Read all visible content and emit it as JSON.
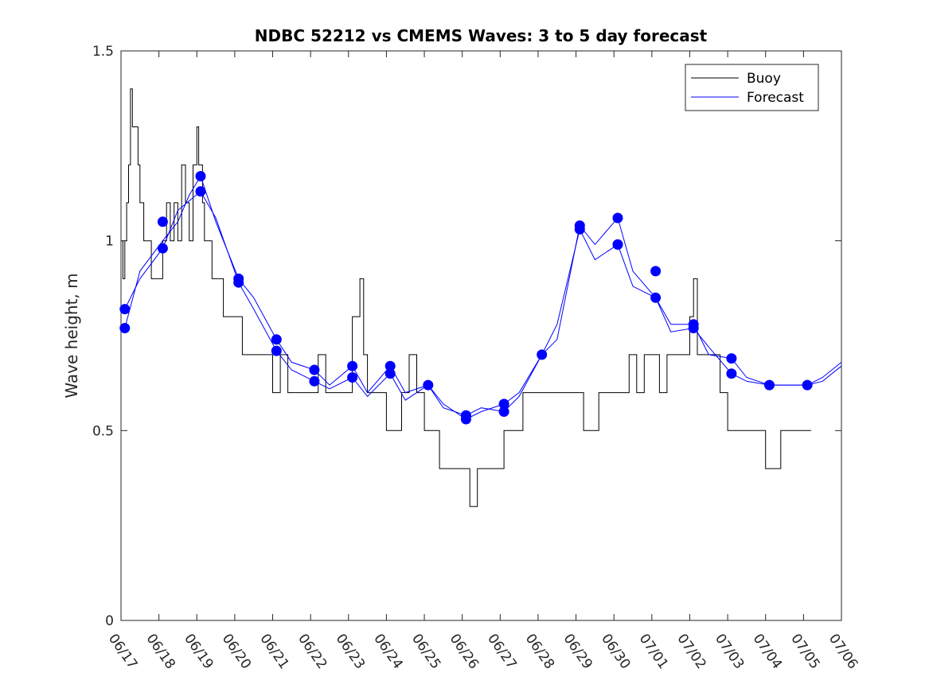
{
  "chart_data": {
    "type": "line",
    "title": "NDBC 52212 vs CMEMS Waves: 3 to 5 day forecast",
    "xlabel": "",
    "ylabel": "Wave height, m",
    "xlim": [
      "06/17",
      "07/06"
    ],
    "ylim": [
      0,
      1.5
    ],
    "y_ticks": [
      "0",
      "0.5",
      "1",
      "1.5"
    ],
    "x_ticks": [
      "06/17",
      "06/18",
      "06/19",
      "06/20",
      "06/21",
      "06/22",
      "06/23",
      "06/24",
      "06/25",
      "06/26",
      "06/27",
      "06/28",
      "06/29",
      "06/30",
      "07/01",
      "07/02",
      "07/03",
      "07/04",
      "07/05",
      "07/06"
    ],
    "grid": false,
    "legend": {
      "placement": "top-right",
      "entries": [
        "Buoy",
        "Forecast"
      ]
    },
    "colors": {
      "buoy": "#000000",
      "forecast": "#0000ff"
    },
    "series": [
      {
        "name": "Buoy",
        "x": [
          0.0,
          0.05,
          0.1,
          0.15,
          0.2,
          0.25,
          0.3,
          0.35,
          0.4,
          0.45,
          0.5,
          0.6,
          0.7,
          0.8,
          0.9,
          1.0,
          1.1,
          1.2,
          1.3,
          1.4,
          1.5,
          1.6,
          1.7,
          1.8,
          1.9,
          2.0,
          2.05,
          2.1,
          2.15,
          2.2,
          2.3,
          2.4,
          2.5,
          2.6,
          2.7,
          2.8,
          2.9,
          3.0,
          3.2,
          3.4,
          3.6,
          3.8,
          4.0,
          4.1,
          4.2,
          4.4,
          4.6,
          4.8,
          5.0,
          5.2,
          5.4,
          5.6,
          5.8,
          6.0,
          6.1,
          6.2,
          6.3,
          6.4,
          6.5,
          6.6,
          6.8,
          7.0,
          7.2,
          7.4,
          7.6,
          7.8,
          8.0,
          8.2,
          8.4,
          8.6,
          8.8,
          9.0,
          9.2,
          9.4,
          9.6,
          9.8,
          10.0,
          10.1,
          10.2,
          10.4,
          10.6,
          10.8,
          11.0,
          11.2,
          11.4,
          11.6,
          11.8,
          12.0,
          12.2,
          12.4,
          12.6,
          12.8,
          13.0,
          13.2,
          13.4,
          13.6,
          13.8,
          14.0,
          14.2,
          14.4,
          14.6,
          14.8,
          15.0,
          15.1,
          15.2,
          15.4,
          15.6,
          15.8,
          16.0,
          16.2,
          16.4,
          16.6,
          16.8,
          17.0,
          17.2,
          17.4,
          17.6,
          17.8,
          18.0,
          18.2
        ],
        "values": [
          1.0,
          0.9,
          1.0,
          1.1,
          1.2,
          1.4,
          1.3,
          1.3,
          1.3,
          1.2,
          1.1,
          1.0,
          1.0,
          0.9,
          0.9,
          0.9,
          1.0,
          1.1,
          1.0,
          1.1,
          1.0,
          1.2,
          1.1,
          1.0,
          1.2,
          1.3,
          1.2,
          1.2,
          1.1,
          1.0,
          1.0,
          0.9,
          0.9,
          0.9,
          0.8,
          0.8,
          0.8,
          0.8,
          0.7,
          0.7,
          0.7,
          0.7,
          0.6,
          0.6,
          0.7,
          0.6,
          0.6,
          0.6,
          0.6,
          0.7,
          0.6,
          0.6,
          0.6,
          0.6,
          0.8,
          0.8,
          0.9,
          0.7,
          0.6,
          0.6,
          0.6,
          0.5,
          0.5,
          0.6,
          0.7,
          0.6,
          0.5,
          0.5,
          0.4,
          0.4,
          0.4,
          0.4,
          0.3,
          0.4,
          0.4,
          0.4,
          0.4,
          0.5,
          0.5,
          0.5,
          0.6,
          0.6,
          0.6,
          0.6,
          0.6,
          0.6,
          0.6,
          0.6,
          0.5,
          0.5,
          0.6,
          0.6,
          0.6,
          0.6,
          0.7,
          0.6,
          0.7,
          0.7,
          0.6,
          0.7,
          0.7,
          0.7,
          0.8,
          0.9,
          0.7,
          0.7,
          0.7,
          0.6,
          0.5,
          0.5,
          0.5,
          0.5,
          0.5,
          0.4,
          0.4,
          0.5,
          0.5,
          0.5,
          0.5,
          0.5
        ]
      },
      {
        "name": "Forecast",
        "x": [
          0.1,
          0.5,
          1.1,
          1.5,
          1.8,
          2.1,
          2.5,
          3.1,
          3.5,
          4.1,
          4.5,
          5.1,
          5.5,
          6.1,
          6.5,
          7.1,
          7.5,
          8.1,
          8.5,
          9.1,
          9.5,
          10.1,
          10.5,
          11.1,
          11.5,
          12.1,
          12.5,
          13.1,
          13.5,
          14.1,
          14.5,
          15.1,
          15.5,
          16.1,
          16.5,
          17.1,
          17.5,
          18.1,
          18.5,
          19.0
        ],
        "values": [
          0.77,
          0.92,
          1.0,
          1.05,
          1.12,
          1.17,
          1.05,
          0.9,
          0.85,
          0.74,
          0.68,
          0.66,
          0.62,
          0.67,
          0.6,
          0.67,
          0.6,
          0.62,
          0.57,
          0.53,
          0.55,
          0.57,
          0.6,
          0.7,
          0.74,
          1.04,
          0.99,
          1.06,
          0.92,
          0.85,
          0.78,
          0.78,
          0.7,
          0.69,
          0.64,
          0.62,
          0.62,
          0.62,
          0.64,
          0.68
        ]
      },
      {
        "name": "Forecast",
        "x": [
          0.1,
          0.5,
          1.1,
          1.5,
          2.1,
          2.5,
          3.1,
          3.5,
          4.1,
          4.5,
          5.1,
          5.5,
          6.1,
          6.5,
          7.1,
          7.5,
          8.1,
          8.5,
          9.1,
          9.5,
          10.1,
          10.5,
          11.1,
          11.5,
          12.1,
          12.5,
          13.1,
          13.5,
          14.1,
          14.5,
          15.1,
          15.5,
          16.1,
          16.5,
          17.1,
          17.5,
          18.1,
          18.5,
          19.0
        ],
        "values": [
          0.82,
          0.9,
          0.98,
          1.08,
          1.13,
          1.06,
          0.89,
          0.82,
          0.71,
          0.66,
          0.63,
          0.61,
          0.64,
          0.59,
          0.65,
          0.58,
          0.62,
          0.56,
          0.54,
          0.56,
          0.55,
          0.59,
          0.7,
          0.78,
          1.03,
          0.95,
          0.99,
          0.88,
          0.85,
          0.76,
          0.77,
          0.72,
          0.65,
          0.63,
          0.62,
          0.62,
          0.62,
          0.63,
          0.67
        ]
      }
    ],
    "markers": {
      "x": [
        0.1,
        0.1,
        1.1,
        1.1,
        2.1,
        2.1,
        3.1,
        3.1,
        4.1,
        4.1,
        5.1,
        5.1,
        6.1,
        6.1,
        7.1,
        7.1,
        8.1,
        9.1,
        9.1,
        10.1,
        10.1,
        11.1,
        12.1,
        12.1,
        13.1,
        13.1,
        13.1,
        14.1,
        14.1,
        15.1,
        15.1,
        16.1,
        16.1,
        17.1,
        18.1
      ],
      "values": [
        0.77,
        0.82,
        1.05,
        0.98,
        1.17,
        1.13,
        0.9,
        0.89,
        0.74,
        0.71,
        0.66,
        0.63,
        0.67,
        0.64,
        0.67,
        0.65,
        0.62,
        0.54,
        0.53,
        0.57,
        0.55,
        0.7,
        1.04,
        1.03,
        1.06,
        0.99,
        0.99,
        0.92,
        0.85,
        0.78,
        0.77,
        0.69,
        0.65,
        0.62,
        0.62
      ]
    }
  }
}
